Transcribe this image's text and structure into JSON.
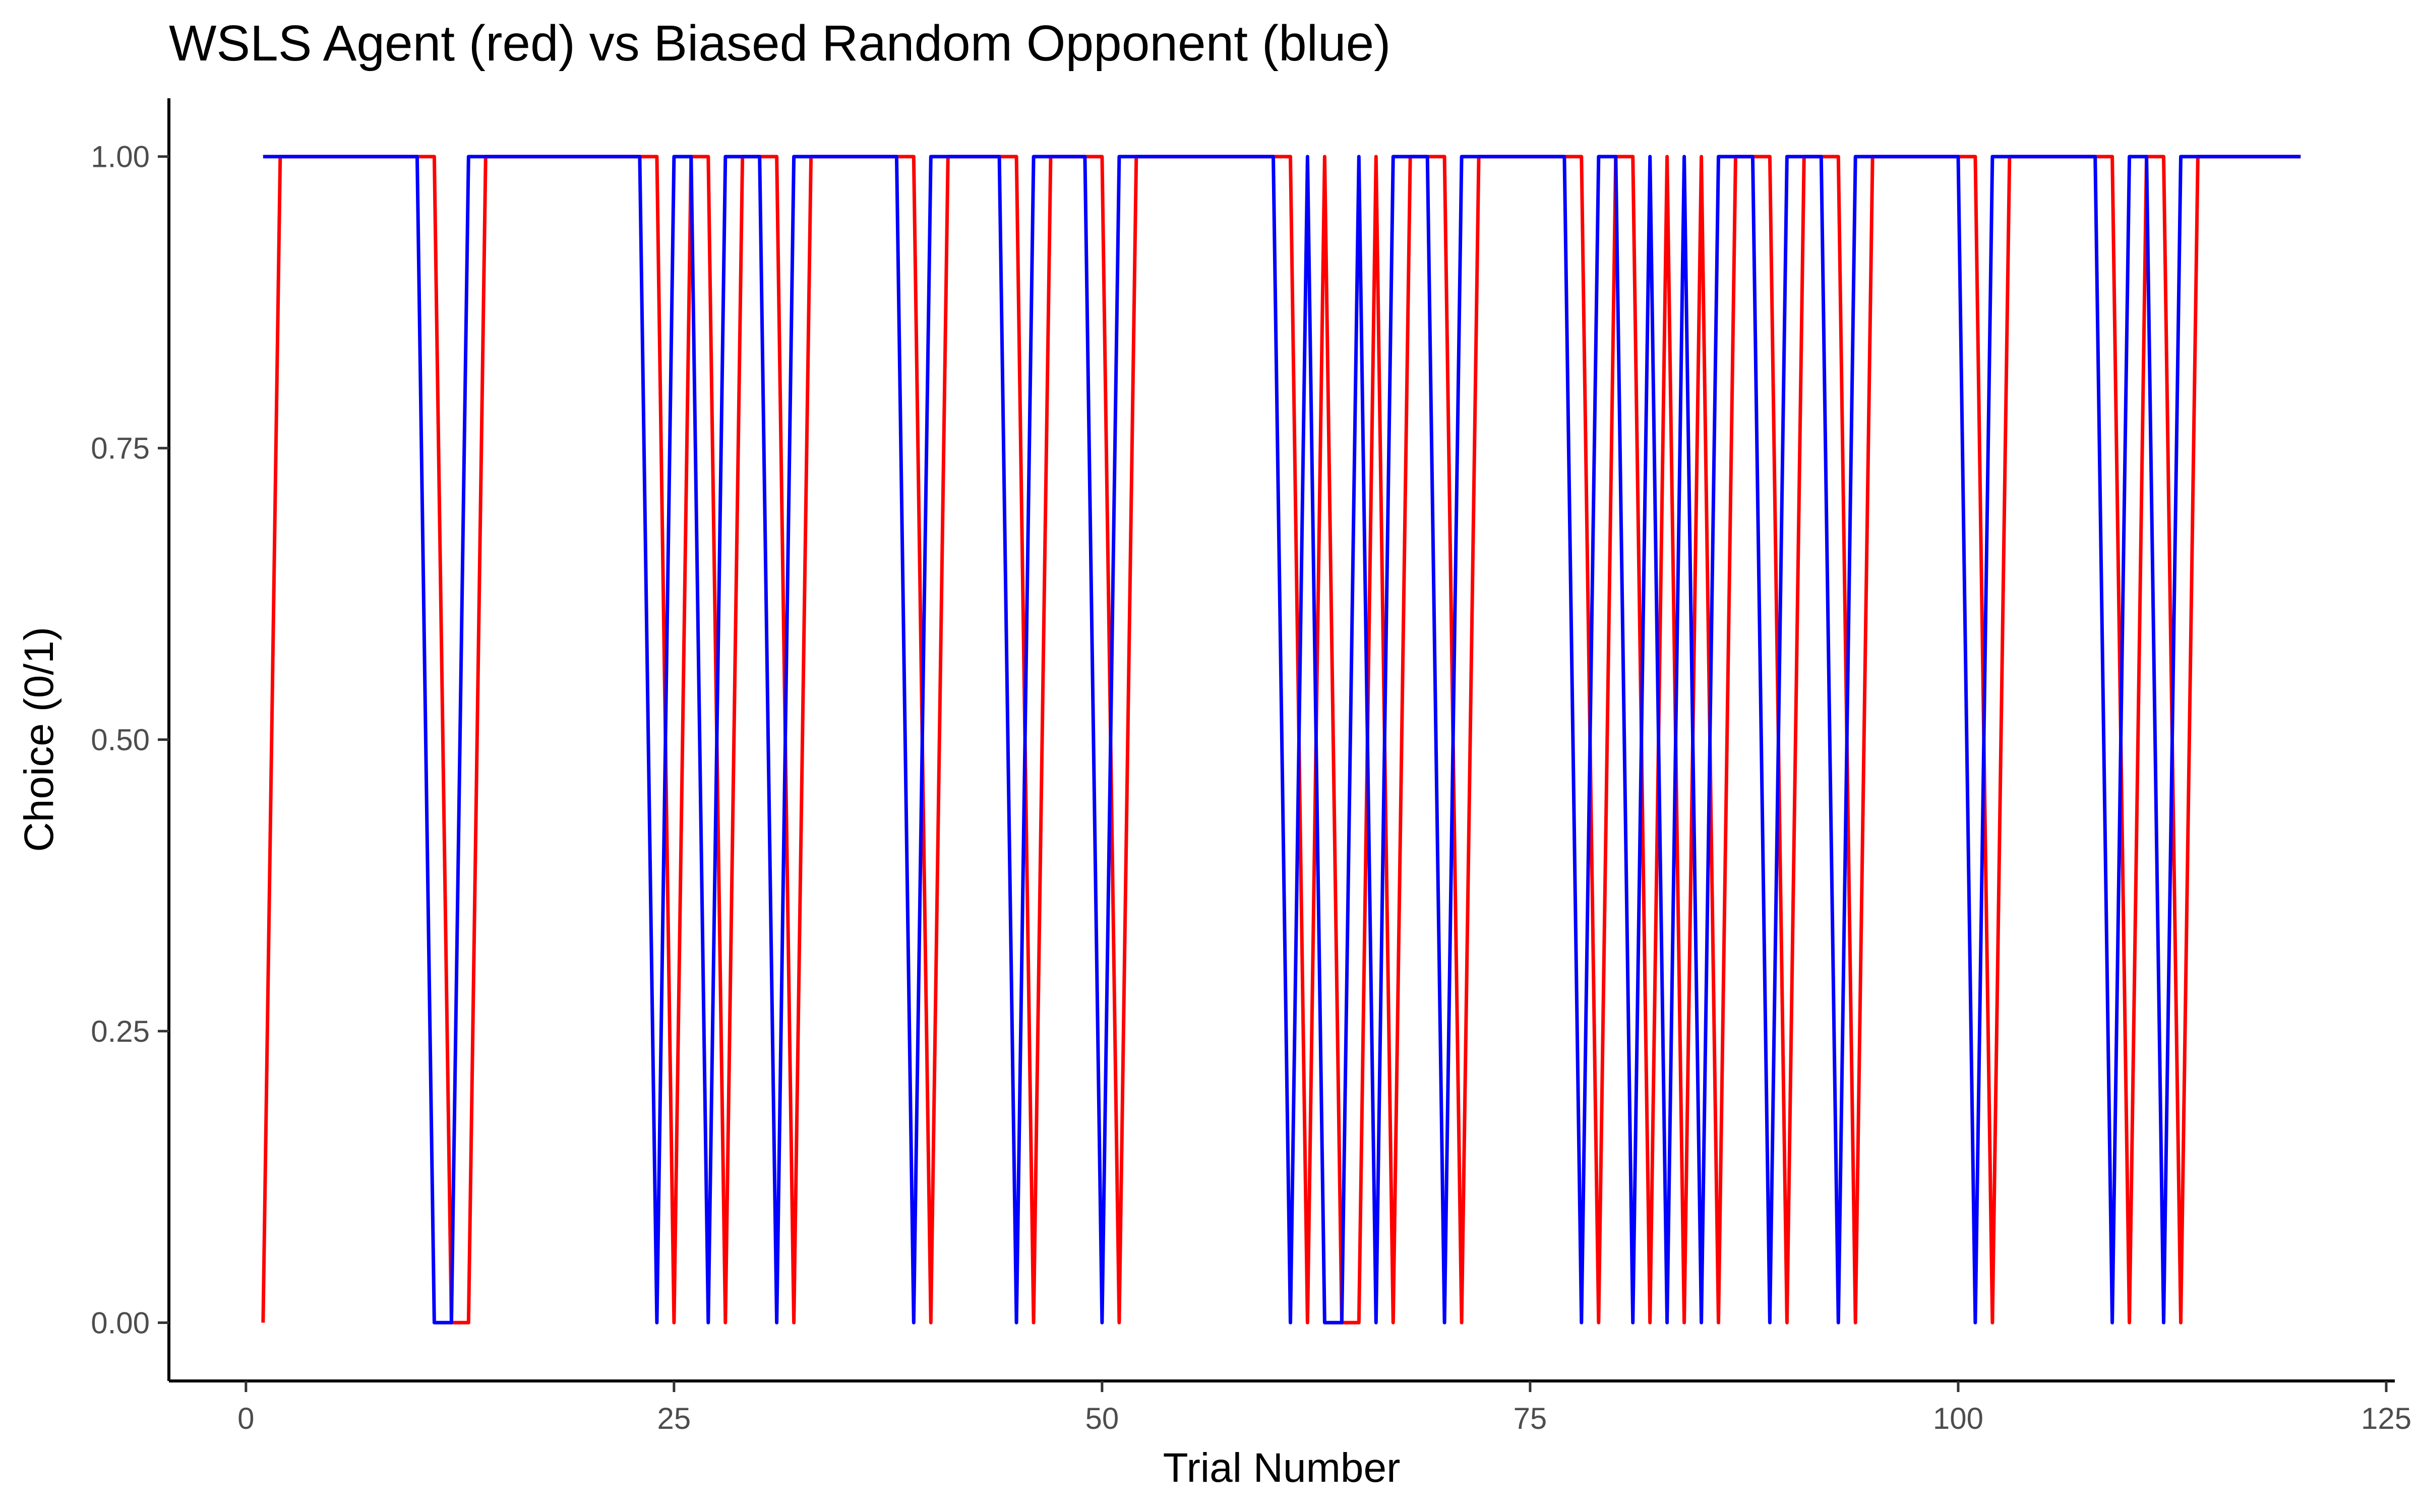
{
  "chart_data": {
    "type": "line",
    "title": "WSLS Agent (red) vs Biased Random Opponent (blue)",
    "xlabel": "Trial Number",
    "ylabel": "Choice (0/1)",
    "xlim": [
      -4.5,
      125.5
    ],
    "ylim": [
      -0.05,
      1.05
    ],
    "x_ticks": [
      0,
      25,
      50,
      75,
      100,
      125
    ],
    "x_tick_labels": [
      "0",
      "25",
      "50",
      "75",
      "100",
      "125"
    ],
    "y_ticks": [
      0,
      0.25,
      0.5,
      0.75,
      1.0
    ],
    "y_tick_labels": [
      "0.00",
      "0.25",
      "0.50",
      "0.75",
      "1.00"
    ],
    "grid": false,
    "legend": "none",
    "x": [
      1,
      2,
      3,
      4,
      5,
      6,
      7,
      8,
      9,
      10,
      11,
      12,
      13,
      14,
      15,
      16,
      17,
      18,
      19,
      20,
      21,
      22,
      23,
      24,
      25,
      26,
      27,
      28,
      29,
      30,
      31,
      32,
      33,
      34,
      35,
      36,
      37,
      38,
      39,
      40,
      41,
      42,
      43,
      44,
      45,
      46,
      47,
      48,
      49,
      50,
      51,
      52,
      53,
      54,
      55,
      56,
      57,
      58,
      59,
      60,
      61,
      62,
      63,
      64,
      65,
      66,
      67,
      68,
      69,
      70,
      71,
      72,
      73,
      74,
      75,
      76,
      77,
      78,
      79,
      80,
      81,
      82,
      83,
      84,
      85,
      86,
      87,
      88,
      89,
      90,
      91,
      92,
      93,
      94,
      95,
      96,
      97,
      98,
      99,
      100,
      101,
      102,
      103,
      104,
      105,
      106,
      107,
      108,
      109,
      110,
      111,
      112,
      113,
      114,
      115,
      116,
      117,
      118,
      119,
      120
    ],
    "series": [
      {
        "color": "#ff0000",
        "values": [
          0,
          1,
          1,
          1,
          1,
          1,
          1,
          1,
          1,
          1,
          1,
          0,
          0,
          1,
          1,
          1,
          1,
          1,
          1,
          1,
          1,
          1,
          1,
          1,
          0,
          1,
          1,
          0,
          1,
          1,
          1,
          0,
          1,
          1,
          1,
          1,
          1,
          1,
          1,
          0,
          1,
          1,
          1,
          1,
          1,
          0,
          1,
          1,
          1,
          1,
          0,
          1,
          1,
          1,
          1,
          1,
          1,
          1,
          1,
          1,
          1,
          0,
          1,
          0,
          0,
          1,
          0,
          1,
          1,
          1,
          0,
          1,
          1,
          1,
          1,
          1,
          1,
          1,
          0,
          1,
          1,
          0,
          1,
          0,
          1,
          0,
          1,
          1,
          1,
          0,
          1,
          1,
          1,
          0,
          1,
          1,
          1,
          1,
          1,
          1,
          1,
          0,
          1,
          1,
          1,
          1,
          1,
          1,
          1,
          0,
          1,
          1,
          0,
          1,
          1,
          1,
          1,
          1,
          1,
          1
        ]
      },
      {
        "color": "#0000ff",
        "values": [
          1,
          1,
          1,
          1,
          1,
          1,
          1,
          1,
          1,
          1,
          0,
          0,
          1,
          1,
          1,
          1,
          1,
          1,
          1,
          1,
          1,
          1,
          1,
          0,
          1,
          1,
          0,
          1,
          1,
          1,
          0,
          1,
          1,
          1,
          1,
          1,
          1,
          1,
          0,
          1,
          1,
          1,
          1,
          1,
          0,
          1,
          1,
          1,
          1,
          0,
          1,
          1,
          1,
          1,
          1,
          1,
          1,
          1,
          1,
          1,
          0,
          1,
          0,
          0,
          1,
          0,
          1,
          1,
          1,
          0,
          1,
          1,
          1,
          1,
          1,
          1,
          1,
          0,
          1,
          1,
          0,
          1,
          0,
          1,
          0,
          1,
          1,
          1,
          0,
          1,
          1,
          1,
          0,
          1,
          1,
          1,
          1,
          1,
          1,
          1,
          0,
          1,
          1,
          1,
          1,
          1,
          1,
          1,
          0,
          1,
          1,
          0,
          1,
          1,
          1,
          1,
          1,
          1,
          1,
          1
        ]
      }
    ]
  }
}
